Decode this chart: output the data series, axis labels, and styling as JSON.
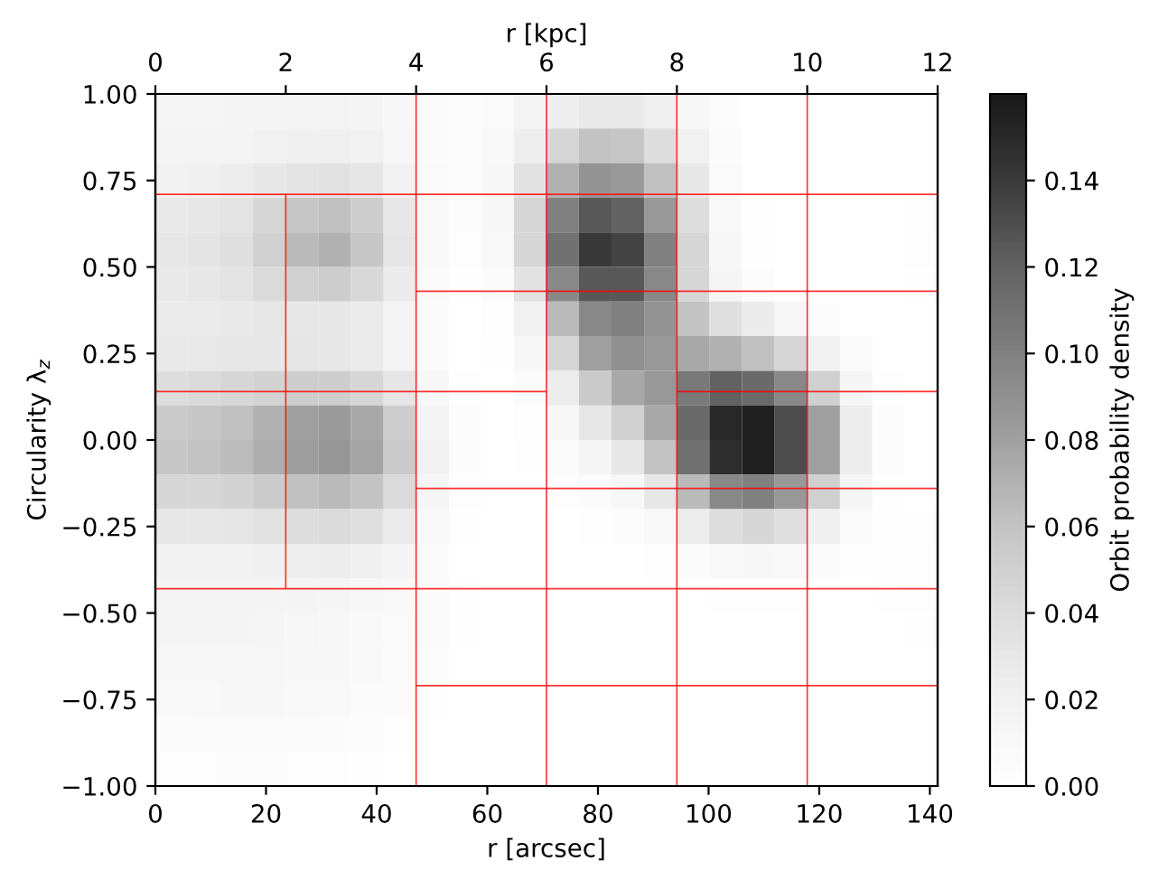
{
  "chart_data": {
    "type": "heatmap",
    "xlabel": "r [arcsec]",
    "x2label": "r [kpc]",
    "ylabel": "Circularity λ$_{z}$",
    "clabel": "Orbit probability density",
    "xlim": [
      0,
      141.4
    ],
    "xticks": [
      0,
      20,
      40,
      60,
      80,
      100,
      120,
      140
    ],
    "x2lim": [
      0,
      12
    ],
    "x2ticks": [
      0,
      2,
      4,
      6,
      8,
      10,
      12
    ],
    "ylim": [
      -1,
      1
    ],
    "yticks": [
      {
        "value": -1,
        "label": "−1.00"
      },
      {
        "value": -0.75,
        "label": "−0.75"
      },
      {
        "value": -0.5,
        "label": "−0.50"
      },
      {
        "value": -0.25,
        "label": "−0.25"
      },
      {
        "value": 0,
        "label": "0.00"
      },
      {
        "value": 0.25,
        "label": "0.25"
      },
      {
        "value": 0.5,
        "label": "0.50"
      },
      {
        "value": 0.75,
        "label": "0.75"
      },
      {
        "value": 1,
        "label": "1.00"
      }
    ],
    "clim": [
      0,
      0.16
    ],
    "cticks": [
      {
        "value": 0,
        "label": "0.00"
      },
      {
        "value": 0.02,
        "label": "0.02"
      },
      {
        "value": 0.04,
        "label": "0.04"
      },
      {
        "value": 0.06,
        "label": "0.06"
      },
      {
        "value": 0.08,
        "label": "0.08"
      },
      {
        "value": 0.1,
        "label": "0.10"
      },
      {
        "value": 0.12,
        "label": "0.12"
      },
      {
        "value": 0.14,
        "label": "0.14"
      }
    ],
    "x": [
      2.9,
      8.8,
      14.7,
      20.6,
      26.5,
      32.4,
      38.3,
      44.2,
      50.1,
      56.0,
      61.9,
      67.7,
      73.6,
      79.5,
      85.4,
      91.3,
      97.2,
      103.1,
      109.0,
      114.9,
      120.8,
      126.7,
      132.5,
      138.4
    ],
    "cells": [
      [
        0.015,
        0.015,
        0.016,
        0.017,
        0.018,
        0.018,
        0.016,
        0.012,
        0.006,
        0.004,
        0.008,
        0.016,
        0.024,
        0.028,
        0.028,
        0.022,
        0.012,
        0.004,
        0.001,
        0,
        0,
        0,
        0,
        0
      ],
      [
        0.016,
        0.017,
        0.018,
        0.02,
        0.022,
        0.023,
        0.02,
        0.014,
        0.006,
        0.004,
        0.01,
        0.024,
        0.045,
        0.06,
        0.058,
        0.04,
        0.02,
        0.006,
        0.001,
        0,
        0,
        0,
        0,
        0
      ],
      [
        0.02,
        0.022,
        0.025,
        0.03,
        0.034,
        0.036,
        0.032,
        0.02,
        0.008,
        0.004,
        0.012,
        0.035,
        0.07,
        0.088,
        0.085,
        0.062,
        0.03,
        0.008,
        0.001,
        0,
        0,
        0,
        0,
        0
      ],
      [
        0.028,
        0.03,
        0.034,
        0.045,
        0.058,
        0.062,
        0.052,
        0.03,
        0.01,
        0.004,
        0.012,
        0.045,
        0.1,
        0.125,
        0.12,
        0.085,
        0.04,
        0.01,
        0.002,
        0,
        0,
        0,
        0,
        0.002
      ],
      [
        0.03,
        0.033,
        0.038,
        0.05,
        0.066,
        0.07,
        0.058,
        0.032,
        0.01,
        0.003,
        0.01,
        0.045,
        0.11,
        0.14,
        0.135,
        0.1,
        0.045,
        0.012,
        0.002,
        0,
        0,
        0,
        0.001,
        0.003
      ],
      [
        0.028,
        0.03,
        0.034,
        0.042,
        0.05,
        0.052,
        0.044,
        0.026,
        0.008,
        0.002,
        0.006,
        0.035,
        0.095,
        0.125,
        0.125,
        0.095,
        0.045,
        0.015,
        0.004,
        0.001,
        0,
        0,
        0,
        0.002
      ],
      [
        0.026,
        0.027,
        0.028,
        0.03,
        0.031,
        0.031,
        0.027,
        0.018,
        0.006,
        0.001,
        0.003,
        0.02,
        0.065,
        0.095,
        0.1,
        0.088,
        0.06,
        0.038,
        0.026,
        0.014,
        0.004,
        0,
        0,
        0
      ],
      [
        0.028,
        0.029,
        0.03,
        0.031,
        0.032,
        0.031,
        0.027,
        0.018,
        0.006,
        0.001,
        0.002,
        0.012,
        0.045,
        0.08,
        0.09,
        0.085,
        0.075,
        0.07,
        0.062,
        0.045,
        0.02,
        0.005,
        0,
        0
      ],
      [
        0.04,
        0.042,
        0.045,
        0.048,
        0.052,
        0.052,
        0.046,
        0.032,
        0.012,
        0.002,
        0.001,
        0.006,
        0.025,
        0.055,
        0.075,
        0.085,
        0.105,
        0.12,
        0.115,
        0.095,
        0.05,
        0.015,
        0.002,
        0
      ],
      [
        0.055,
        0.058,
        0.062,
        0.07,
        0.08,
        0.084,
        0.075,
        0.052,
        0.018,
        0.004,
        0.001,
        0.003,
        0.012,
        0.03,
        0.05,
        0.075,
        0.115,
        0.15,
        0.155,
        0.13,
        0.08,
        0.025,
        0.004,
        0
      ],
      [
        0.058,
        0.06,
        0.064,
        0.072,
        0.082,
        0.086,
        0.078,
        0.055,
        0.02,
        0.004,
        0.001,
        0.002,
        0.006,
        0.015,
        0.03,
        0.06,
        0.11,
        0.148,
        0.155,
        0.13,
        0.08,
        0.025,
        0.004,
        0
      ],
      [
        0.045,
        0.046,
        0.048,
        0.054,
        0.062,
        0.066,
        0.06,
        0.042,
        0.015,
        0.003,
        0,
        0.001,
        0.003,
        0.006,
        0.012,
        0.03,
        0.065,
        0.095,
        0.1,
        0.085,
        0.05,
        0.015,
        0.002,
        0
      ],
      [
        0.03,
        0.03,
        0.032,
        0.036,
        0.04,
        0.042,
        0.038,
        0.027,
        0.01,
        0.002,
        0,
        0,
        0.001,
        0.002,
        0.004,
        0.01,
        0.025,
        0.04,
        0.045,
        0.038,
        0.022,
        0.007,
        0.002,
        0.002
      ],
      [
        0.02,
        0.02,
        0.021,
        0.022,
        0.024,
        0.025,
        0.022,
        0.016,
        0.006,
        0.001,
        0,
        0,
        0,
        0,
        0.001,
        0.003,
        0.006,
        0.01,
        0.012,
        0.01,
        0.006,
        0.002,
        0.002,
        0.003
      ],
      [
        0.016,
        0.016,
        0.016,
        0.016,
        0.016,
        0.015,
        0.013,
        0.01,
        0.005,
        0.002,
        0,
        0,
        0,
        0,
        0,
        0,
        0.001,
        0.002,
        0.002,
        0.002,
        0.001,
        0.001,
        0.002,
        0.003
      ],
      [
        0.016,
        0.016,
        0.016,
        0.015,
        0.014,
        0.012,
        0.01,
        0.008,
        0.005,
        0.002,
        0,
        0,
        0,
        0,
        0,
        0,
        0,
        0,
        0,
        0,
        0,
        0,
        0.001,
        0.002
      ],
      [
        0.014,
        0.014,
        0.014,
        0.014,
        0.013,
        0.012,
        0.01,
        0.007,
        0.004,
        0.001,
        0,
        0,
        0,
        0,
        0,
        0,
        0,
        0,
        0,
        0,
        0,
        0,
        0,
        0
      ],
      [
        0.01,
        0.011,
        0.012,
        0.012,
        0.011,
        0.01,
        0.008,
        0.005,
        0.002,
        0.001,
        0,
        0,
        0,
        0,
        0,
        0,
        0,
        0,
        0,
        0,
        0,
        0,
        0,
        0
      ],
      [
        0.006,
        0.007,
        0.008,
        0.008,
        0.007,
        0.006,
        0.004,
        0.003,
        0.001,
        0,
        0,
        0,
        0,
        0,
        0,
        0,
        0,
        0,
        0,
        0,
        0,
        0,
        0,
        0
      ],
      [
        0.003,
        0.003,
        0.004,
        0.004,
        0.003,
        0.003,
        0.002,
        0.001,
        0,
        0,
        0,
        0,
        0,
        0,
        0,
        0,
        0,
        0,
        0,
        0,
        0,
        0,
        0,
        0
      ]
    ],
    "series": [
      {
        "type": "line",
        "axis": "x2",
        "color": "#ff0000",
        "x": [
          0,
          12
        ],
        "values": [
          0.71,
          0.71
        ]
      },
      {
        "type": "line",
        "axis": "x2",
        "color": "#ff0000",
        "x": [
          4,
          12
        ],
        "values": [
          0.43,
          0.43
        ]
      },
      {
        "type": "line",
        "axis": "x2",
        "color": "#ff0000",
        "x": [
          0,
          6
        ],
        "values": [
          0.14,
          0.14
        ]
      },
      {
        "type": "line",
        "axis": "x2",
        "color": "#ff0000",
        "x": [
          8,
          12
        ],
        "values": [
          0.14,
          0.14
        ]
      },
      {
        "type": "line",
        "axis": "x2",
        "color": "#ff0000",
        "x": [
          4,
          12
        ],
        "values": [
          -0.14,
          -0.14
        ]
      },
      {
        "type": "line",
        "axis": "x2",
        "color": "#ff0000",
        "x": [
          0,
          12
        ],
        "values": [
          -0.43,
          -0.43
        ]
      },
      {
        "type": "line",
        "axis": "x2",
        "color": "#ff0000",
        "x": [
          4,
          12
        ],
        "values": [
          -0.71,
          -0.71
        ]
      },
      {
        "type": "line",
        "axis": "x2",
        "color": "#ff0000",
        "x": [
          2,
          2
        ],
        "values": [
          0.71,
          -0.43
        ]
      },
      {
        "type": "line",
        "axis": "x2",
        "color": "#ff0000",
        "x": [
          4,
          4
        ],
        "values": [
          -1,
          1
        ]
      },
      {
        "type": "line",
        "axis": "x2",
        "color": "#ff0000",
        "x": [
          6,
          6
        ],
        "values": [
          -1,
          1
        ]
      },
      {
        "type": "line",
        "axis": "x2",
        "color": "#ff0000",
        "x": [
          8,
          8
        ],
        "values": [
          -1,
          1
        ]
      },
      {
        "type": "line",
        "axis": "x2",
        "color": "#ff0000",
        "x": [
          10,
          10
        ],
        "values": [
          -1,
          1
        ]
      }
    ]
  }
}
